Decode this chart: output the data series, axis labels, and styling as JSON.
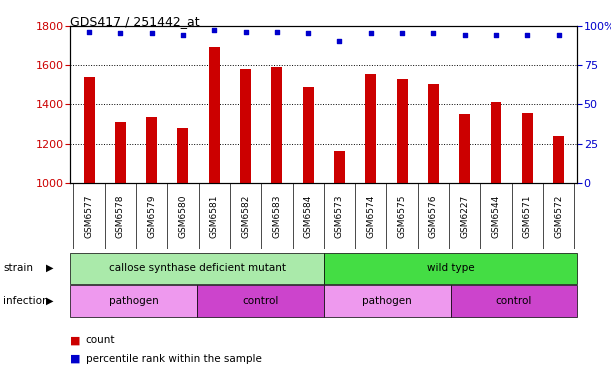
{
  "title": "GDS417 / 251442_at",
  "samples": [
    "GSM6577",
    "GSM6578",
    "GSM6579",
    "GSM6580",
    "GSM6581",
    "GSM6582",
    "GSM6583",
    "GSM6584",
    "GSM6573",
    "GSM6574",
    "GSM6575",
    "GSM6576",
    "GSM6227",
    "GSM6544",
    "GSM6571",
    "GSM6572"
  ],
  "counts": [
    1540,
    1310,
    1335,
    1280,
    1690,
    1580,
    1590,
    1490,
    1165,
    1555,
    1530,
    1505,
    1350,
    1410,
    1355,
    1240
  ],
  "percentiles": [
    96,
    95,
    95,
    94,
    97,
    96,
    96,
    95,
    90,
    95,
    95,
    95,
    94,
    94,
    94,
    94
  ],
  "bar_color": "#cc0000",
  "dot_color": "#0000cc",
  "ylim_left": [
    1000,
    1800
  ],
  "ylim_right": [
    0,
    100
  ],
  "yticks_left": [
    1000,
    1200,
    1400,
    1600,
    1800
  ],
  "yticks_right": [
    0,
    25,
    50,
    75,
    100
  ],
  "ylabel_right_ticks": [
    "0",
    "25",
    "50",
    "75",
    "100%"
  ],
  "strain_groups": [
    {
      "label": "callose synthase deficient mutant",
      "start": 0,
      "end": 8,
      "color": "#aaeaaa"
    },
    {
      "label": "wild type",
      "start": 8,
      "end": 16,
      "color": "#44dd44"
    }
  ],
  "infection_groups": [
    {
      "label": "pathogen",
      "start": 0,
      "end": 4,
      "color": "#ee99ee"
    },
    {
      "label": "control",
      "start": 4,
      "end": 8,
      "color": "#cc44cc"
    },
    {
      "label": "pathogen",
      "start": 8,
      "end": 12,
      "color": "#ee99ee"
    },
    {
      "label": "control",
      "start": 12,
      "end": 16,
      "color": "#cc44cc"
    }
  ],
  "strain_label": "strain",
  "infection_label": "infection",
  "legend_count_label": "count",
  "legend_pct_label": "percentile rank within the sample",
  "background_color": "#ffffff",
  "plot_bg_color": "#ffffff",
  "xtick_bg_color": "#dddddd",
  "grid_color": "#000000",
  "tick_label_color_left": "#cc0000",
  "tick_label_color_right": "#0000cc"
}
